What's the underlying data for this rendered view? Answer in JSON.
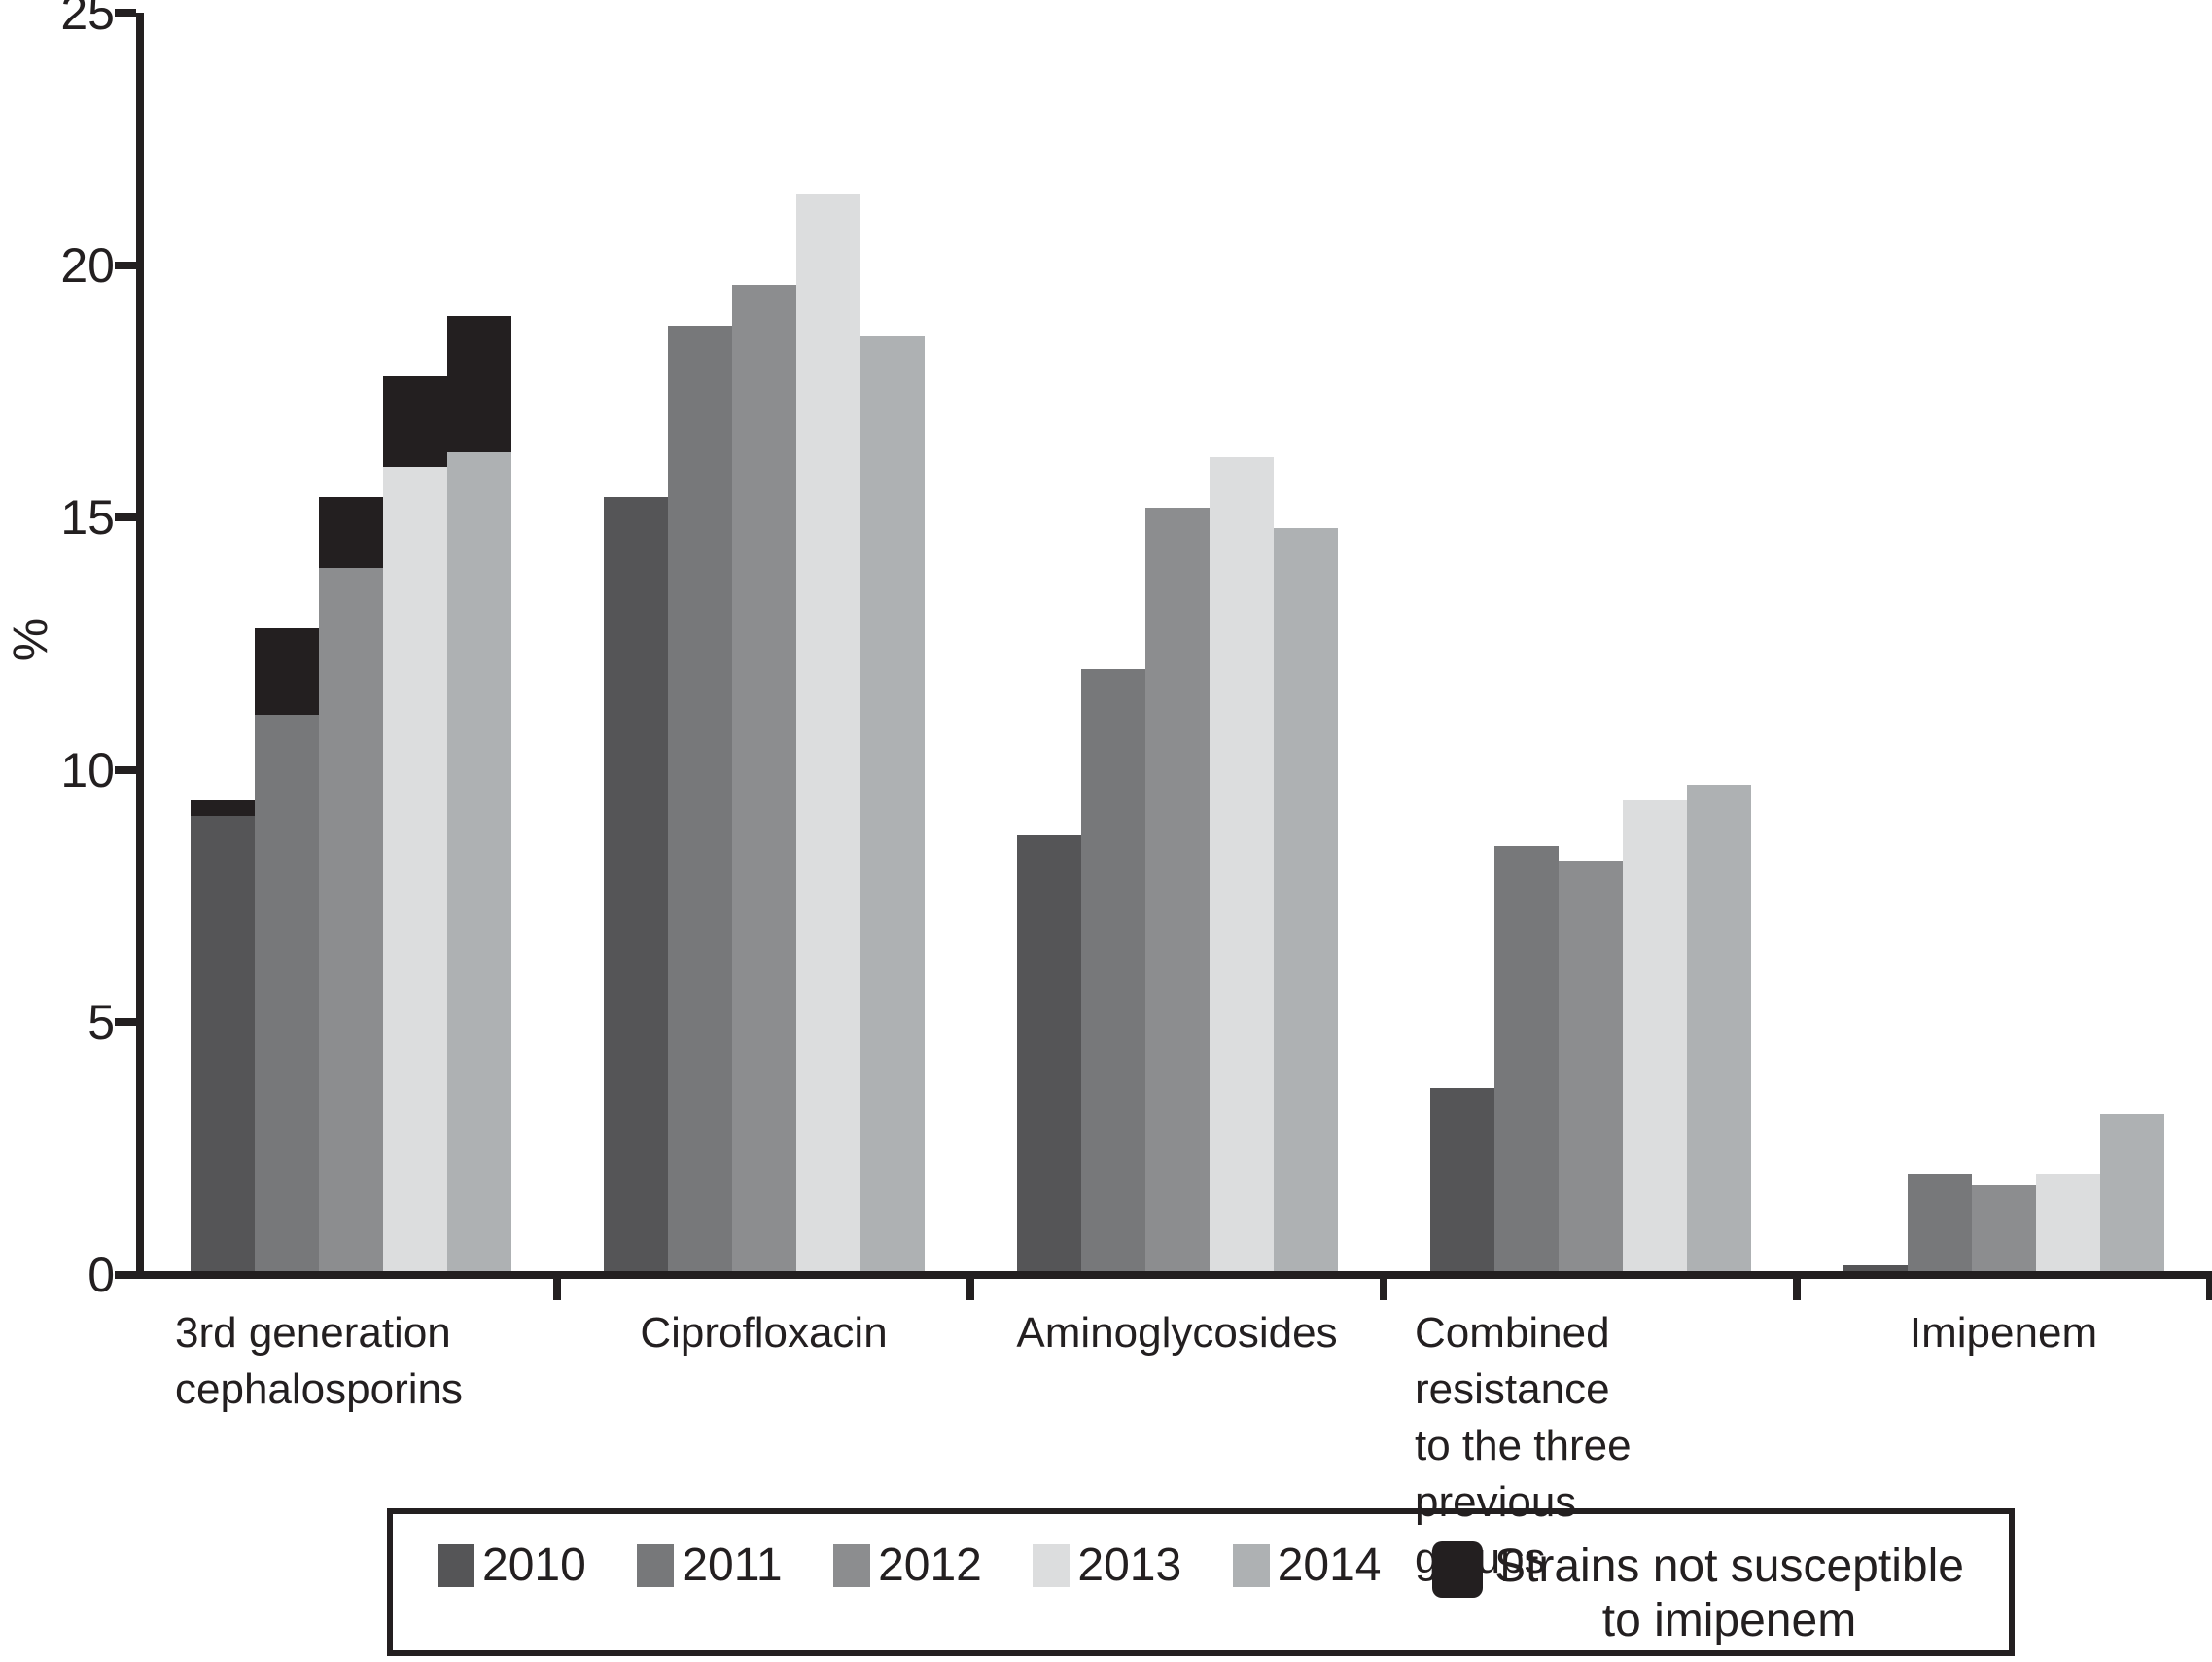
{
  "figure": {
    "type_hint": "grouped bar chart with stacked black overlay segments"
  },
  "chart_data": {
    "type": "bar",
    "title": "",
    "xlabel": "",
    "ylabel": "%",
    "ylim": [
      0,
      25
    ],
    "y_ticks": [
      0,
      5,
      10,
      15,
      20,
      25
    ],
    "grid": false,
    "legend_position": "bottom-box",
    "categories": [
      "3rd generation\ncephalosporins",
      "Ciprofloxacin",
      "Aminoglycosides",
      "Combined resistance\nto the three previous\ngroups",
      "Imipenem"
    ],
    "series": [
      {
        "name": "2010",
        "color": "#555557",
        "values": [
          9.1,
          15.4,
          8.7,
          3.7,
          0.2
        ]
      },
      {
        "name": "2011",
        "color": "#77787a",
        "values": [
          11.1,
          18.8,
          12.0,
          8.5,
          2.0
        ]
      },
      {
        "name": "2012",
        "color": "#8c8d8f",
        "values": [
          14.0,
          19.6,
          15.2,
          8.2,
          1.8
        ]
      },
      {
        "name": "2013",
        "color": "#dcddde",
        "values": [
          16.0,
          21.4,
          16.2,
          9.4,
          2.0
        ]
      },
      {
        "name": "2014",
        "color": "#aeb1b3",
        "values": [
          16.3,
          18.6,
          14.8,
          9.7,
          3.2
        ]
      }
    ],
    "overlay_series": {
      "name": "Strains not susceptible to imipenem",
      "label_line1": "Strains not susceptible",
      "label_line2": "to imipenem",
      "color": "#231f20",
      "category": "3rd generation\ncephalosporins",
      "category_index": 0,
      "extra_values_by_year": [
        0.3,
        1.7,
        1.4,
        1.8,
        2.7
      ],
      "stacked_totals_by_year": [
        9.4,
        12.8,
        15.4,
        17.8,
        19.0
      ]
    },
    "colors": {
      "axis": "#231f20",
      "text": "#231f20",
      "background": "#ffffff"
    }
  }
}
